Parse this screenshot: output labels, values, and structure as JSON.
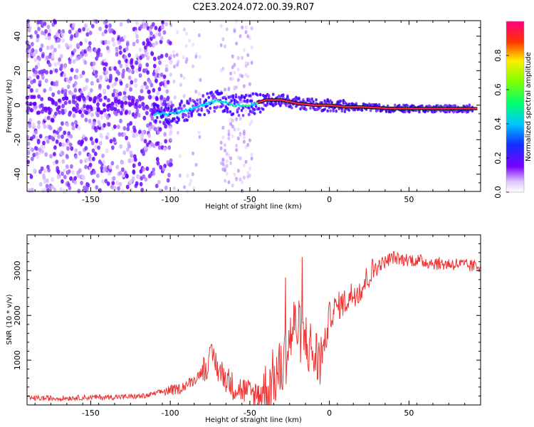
{
  "title": "C2E3.2024.072.00.39.R07",
  "chart_data": [
    {
      "type": "heatmap",
      "xlabel": "Height of straight line (km)",
      "ylabel": "Frequency (Hz)",
      "xlim": [
        -190,
        95
      ],
      "ylim": [
        -50,
        49
      ],
      "xticks": [
        -150,
        -100,
        -50,
        0,
        50
      ],
      "xtick_labels": [
        "-150",
        "-100",
        "-50",
        "0",
        "50"
      ],
      "yticks": [
        -40,
        -20,
        0,
        20,
        40
      ],
      "ytick_labels": [
        "-40",
        "-20",
        "0",
        "20",
        "40"
      ],
      "ridge": {
        "x": [
          -110,
          -100,
          -90,
          -80,
          -70,
          -60,
          -50,
          -40,
          -30,
          -20,
          -10,
          0,
          10,
          20,
          40,
          60,
          90
        ],
        "y": [
          -5,
          -5,
          -3,
          0,
          3,
          0,
          0,
          3,
          3,
          1,
          0,
          0,
          -1,
          -1,
          -2,
          -2,
          -2
        ]
      },
      "colorbar": {
        "label": "Normalized spectral amplitude",
        "range": [
          0,
          1
        ],
        "ticks": [
          0.0,
          0.2,
          0.4,
          0.6,
          0.8
        ],
        "tick_labels": [
          "0.0",
          "0.2",
          "0.4",
          "0.6",
          "0.8"
        ]
      }
    },
    {
      "type": "line",
      "xlabel": "Height of straight line (km)",
      "ylabel": "SNR (10 * v/v)",
      "xlim": [
        -190,
        95
      ],
      "ylim": [
        0,
        3800
      ],
      "xticks": [
        -150,
        -100,
        -50,
        0,
        50
      ],
      "xtick_labels": [
        "-150",
        "-100",
        "-50",
        "0",
        "50"
      ],
      "yticks": [
        1000,
        2000,
        3000
      ],
      "ytick_labels": [
        "1000",
        "2000",
        "3000"
      ],
      "series": [
        {
          "name": "SNR",
          "color": "#ee3333",
          "x": [
            -190,
            -170,
            -150,
            -130,
            -115,
            -105,
            -95,
            -85,
            -78,
            -73,
            -70,
            -65,
            -60,
            -55,
            -50,
            -45,
            -40,
            -35,
            -30,
            -26,
            -22,
            -18,
            -14,
            -10,
            -6,
            -2,
            0,
            5,
            10,
            15,
            20,
            25,
            30,
            35,
            40,
            45,
            50,
            60,
            70,
            80,
            88,
            95
          ],
          "y": [
            150,
            150,
            170,
            180,
            200,
            300,
            350,
            550,
            850,
            1100,
            800,
            600,
            400,
            350,
            250,
            250,
            300,
            600,
            800,
            1300,
            1800,
            1600,
            1400,
            1100,
            1000,
            1500,
            2000,
            2200,
            2300,
            2500,
            2600,
            2900,
            3100,
            3200,
            3300,
            3250,
            3250,
            3200,
            3150,
            3150,
            3100,
            3100
          ]
        }
      ]
    }
  ]
}
